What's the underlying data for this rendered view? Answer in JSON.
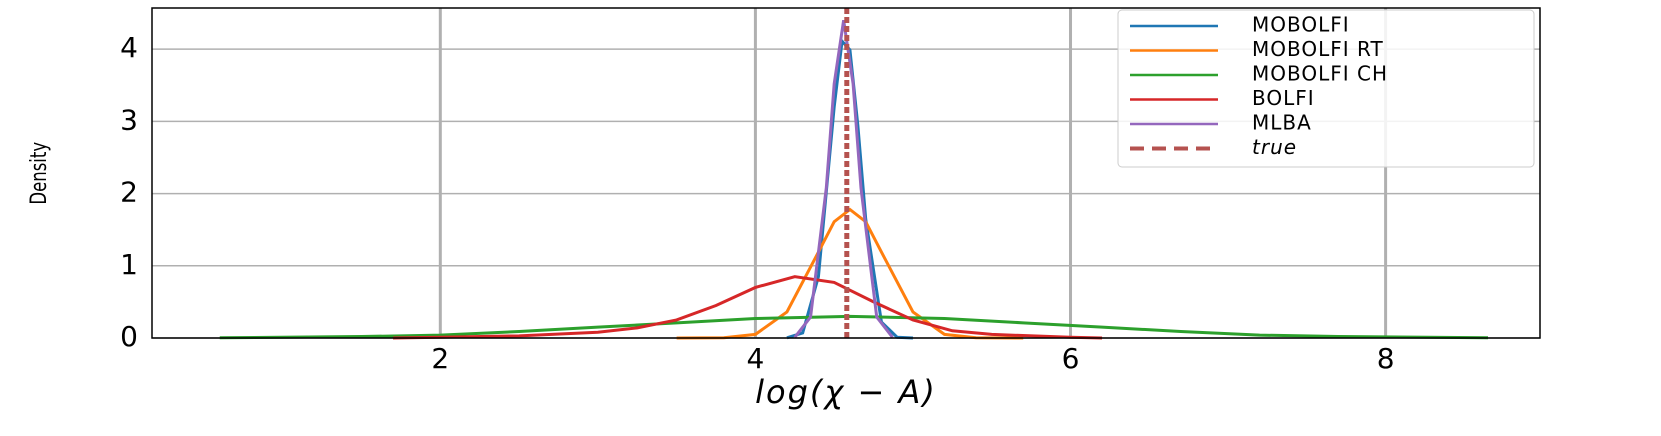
{
  "chart_data": {
    "type": "line",
    "xlabel": "log(χ − A)",
    "ylabel": "Density",
    "xlim": [
      0.17,
      8.98
    ],
    "ylim": [
      0,
      4.57
    ],
    "xticks": [
      2,
      4,
      6,
      8
    ],
    "yticks": [
      0,
      1,
      2,
      3,
      4
    ],
    "grid": true,
    "legend": "upper right",
    "series": [
      {
        "name": "MOBOLFI",
        "color": "#1f77b4",
        "x": [
          4.2,
          4.3,
          4.4,
          4.5,
          4.55,
          4.6,
          4.65,
          4.7,
          4.8,
          4.9,
          5.0
        ],
        "values": [
          0.002,
          0.07,
          0.85,
          3.2,
          4.11,
          3.99,
          2.95,
          1.65,
          0.22,
          0.01,
          0
        ]
      },
      {
        "name": "MOBOLFI RT",
        "color": "#ff7f0e",
        "x": [
          3.5,
          3.8,
          4.0,
          4.2,
          4.4,
          4.5,
          4.6,
          4.7,
          4.8,
          5.0,
          5.2,
          5.4,
          5.7
        ],
        "values": [
          0,
          0.003,
          0.05,
          0.36,
          1.19,
          1.61,
          1.78,
          1.61,
          1.19,
          0.36,
          0.05,
          0.003,
          0
        ]
      },
      {
        "name": "MOBOLFI CH",
        "color": "#2ca02c",
        "x": [
          0.6,
          1.5,
          2.0,
          2.5,
          3.0,
          3.5,
          4.0,
          4.6,
          5.2,
          5.7,
          6.2,
          6.7,
          7.2,
          7.7,
          8.65
        ],
        "values": [
          0.003,
          0.02,
          0.04,
          0.09,
          0.15,
          0.21,
          0.27,
          0.3,
          0.27,
          0.21,
          0.15,
          0.09,
          0.04,
          0.02,
          0.003
        ]
      },
      {
        "name": "BOLFI",
        "color": "#d62728",
        "x": [
          1.7,
          2.0,
          2.5,
          3.0,
          3.25,
          3.5,
          3.75,
          4.0,
          4.25,
          4.5,
          4.75,
          5.0,
          5.25,
          5.5,
          6.0,
          6.2
        ],
        "values": [
          0,
          0.01,
          0.03,
          0.08,
          0.14,
          0.25,
          0.45,
          0.7,
          0.85,
          0.77,
          0.5,
          0.25,
          0.1,
          0.05,
          0.01,
          0
        ]
      },
      {
        "name": "MLBA",
        "color": "#9467bd",
        "x": [
          4.25,
          4.35,
          4.45,
          4.5,
          4.56,
          4.62,
          4.67,
          4.77,
          4.87
        ],
        "values": [
          0.01,
          0.29,
          2.08,
          3.52,
          4.4,
          3.52,
          2.08,
          0.29,
          0.01
        ]
      }
    ],
    "true_line": {
      "name": "true",
      "value": 4.58,
      "color": "#b5524f"
    }
  }
}
